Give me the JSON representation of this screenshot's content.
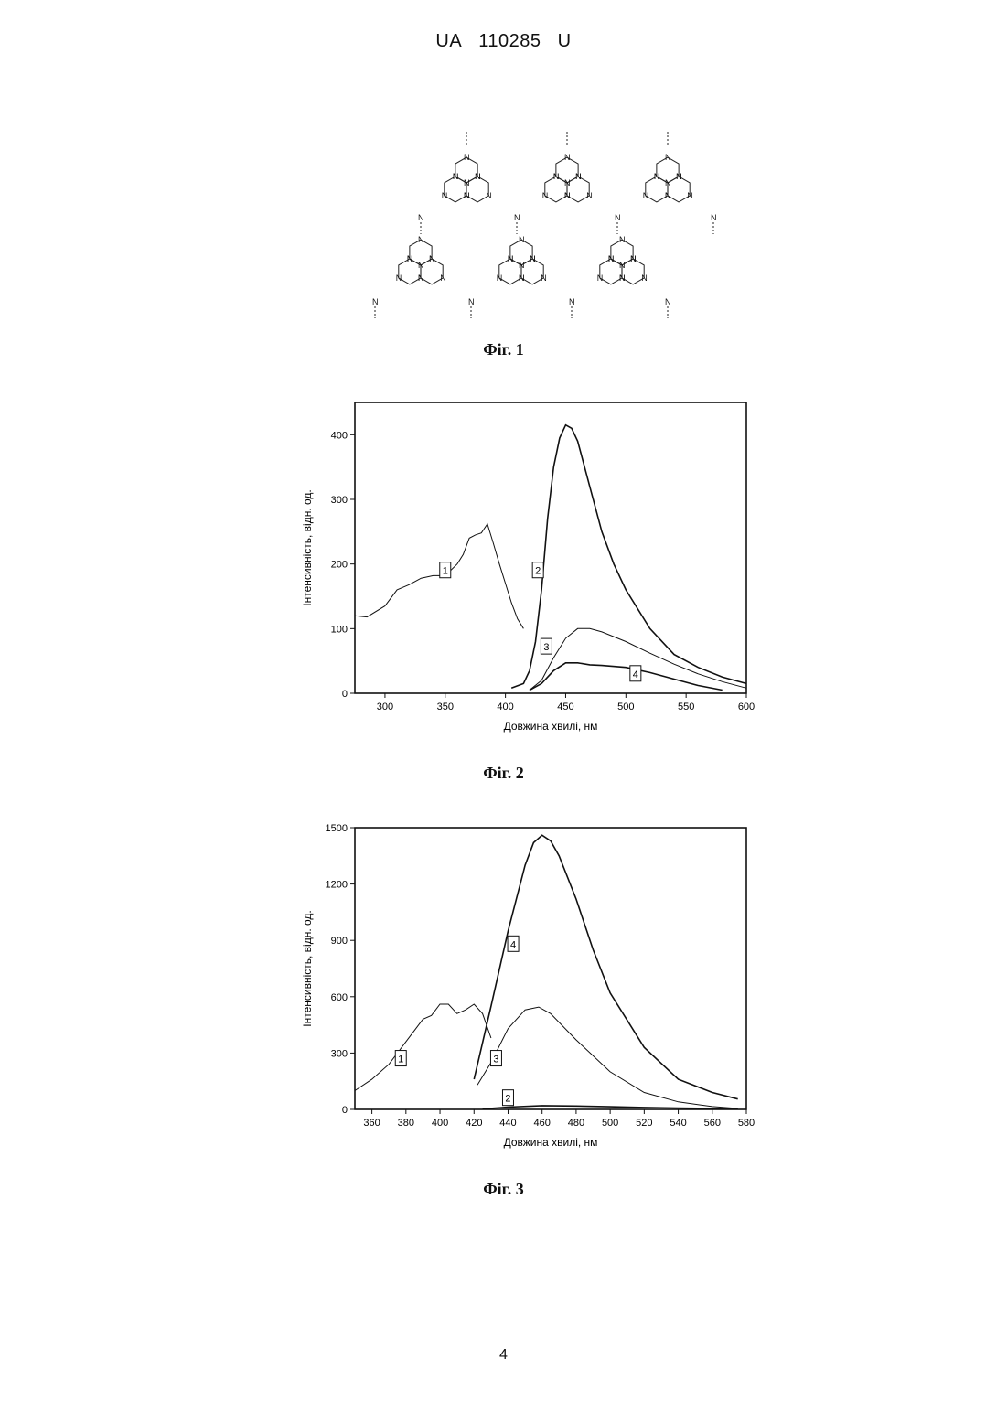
{
  "header": {
    "office": "UA",
    "number": "110285",
    "kind": "U"
  },
  "figures": {
    "fig1": {
      "caption": "Фіг. 1",
      "atom_label": "N"
    },
    "fig2": {
      "caption": "Фіг. 2"
    },
    "fig3": {
      "caption": "Фіг. 3"
    }
  },
  "page_number": "4",
  "chart_data": [
    {
      "type": "line",
      "xlabel": "Довжина хвилі, нм",
      "ylabel": "Інтенсивність, відн. од.",
      "xlim": [
        275,
        600
      ],
      "ylim": [
        0,
        450
      ],
      "xticks": [
        300,
        350,
        400,
        450,
        500,
        550,
        600
      ],
      "yticks": [
        0,
        100,
        200,
        300,
        400
      ],
      "grid": false,
      "legend": "none",
      "series": [
        {
          "name": "1",
          "x": [
            275,
            285,
            300,
            310,
            320,
            330,
            340,
            350,
            360,
            365,
            370,
            375,
            380,
            385,
            390,
            395,
            400,
            405,
            410,
            415
          ],
          "y": [
            120,
            118,
            135,
            160,
            168,
            178,
            182,
            182,
            200,
            215,
            240,
            245,
            248,
            262,
            232,
            200,
            170,
            140,
            115,
            100
          ]
        },
        {
          "name": "2",
          "x": [
            405,
            415,
            420,
            425,
            430,
            435,
            440,
            445,
            450,
            455,
            460,
            470,
            480,
            490,
            500,
            520,
            540,
            560,
            580,
            600
          ],
          "y": [
            8,
            15,
            35,
            80,
            160,
            270,
            350,
            395,
            415,
            410,
            390,
            320,
            250,
            200,
            160,
            100,
            60,
            40,
            25,
            15
          ]
        },
        {
          "name": "3",
          "x": [
            420,
            430,
            440,
            450,
            460,
            470,
            480,
            500,
            520,
            540,
            560,
            580,
            600
          ],
          "y": [
            5,
            20,
            55,
            85,
            100,
            100,
            95,
            80,
            62,
            45,
            30,
            18,
            8
          ]
        },
        {
          "name": "4",
          "x": [
            420,
            430,
            440,
            450,
            460,
            470,
            480,
            500,
            520,
            540,
            560,
            580
          ],
          "y": [
            5,
            15,
            35,
            47,
            47,
            44,
            43,
            40,
            32,
            22,
            12,
            5
          ]
        }
      ],
      "labels": [
        {
          "text": "1",
          "x": 350,
          "y": 190
        },
        {
          "text": "2",
          "x": 427,
          "y": 190
        },
        {
          "text": "3",
          "x": 434,
          "y": 72
        },
        {
          "text": "4",
          "x": 508,
          "y": 30
        }
      ]
    },
    {
      "type": "line",
      "xlabel": "Довжина хвилі, нм",
      "ylabel": "Інтенсивність, відн. од.",
      "xlim": [
        350,
        580
      ],
      "ylim": [
        0,
        1500
      ],
      "xticks": [
        360,
        380,
        400,
        420,
        440,
        460,
        480,
        500,
        520,
        540,
        560,
        580
      ],
      "yticks": [
        0,
        300,
        600,
        900,
        1200,
        1500
      ],
      "grid": false,
      "legend": "none",
      "series": [
        {
          "name": "1",
          "x": [
            350,
            360,
            370,
            380,
            390,
            395,
            400,
            405,
            410,
            415,
            420,
            425,
            430
          ],
          "y": [
            100,
            160,
            240,
            360,
            480,
            500,
            560,
            560,
            510,
            530,
            560,
            510,
            380
          ]
        },
        {
          "name": "2",
          "x": [
            425,
            440,
            460,
            480,
            500,
            520,
            540,
            560,
            575
          ],
          "y": [
            2,
            12,
            20,
            18,
            14,
            10,
            7,
            5,
            3
          ]
        },
        {
          "name": "3",
          "x": [
            422,
            430,
            440,
            450,
            458,
            465,
            480,
            500,
            520,
            540,
            560,
            575
          ],
          "y": [
            130,
            250,
            430,
            530,
            545,
            510,
            370,
            200,
            90,
            40,
            15,
            5
          ]
        },
        {
          "name": "4",
          "x": [
            420,
            430,
            440,
            450,
            455,
            460,
            465,
            470,
            480,
            490,
            500,
            520,
            540,
            560,
            575
          ],
          "y": [
            160,
            550,
            950,
            1300,
            1420,
            1460,
            1430,
            1350,
            1120,
            850,
            620,
            330,
            160,
            90,
            55
          ]
        }
      ],
      "labels": [
        {
          "text": "1",
          "x": 377,
          "y": 270
        },
        {
          "text": "4",
          "x": 443,
          "y": 880
        },
        {
          "text": "3",
          "x": 433,
          "y": 270
        },
        {
          "text": "2",
          "x": 440,
          "y": 60
        }
      ]
    }
  ]
}
